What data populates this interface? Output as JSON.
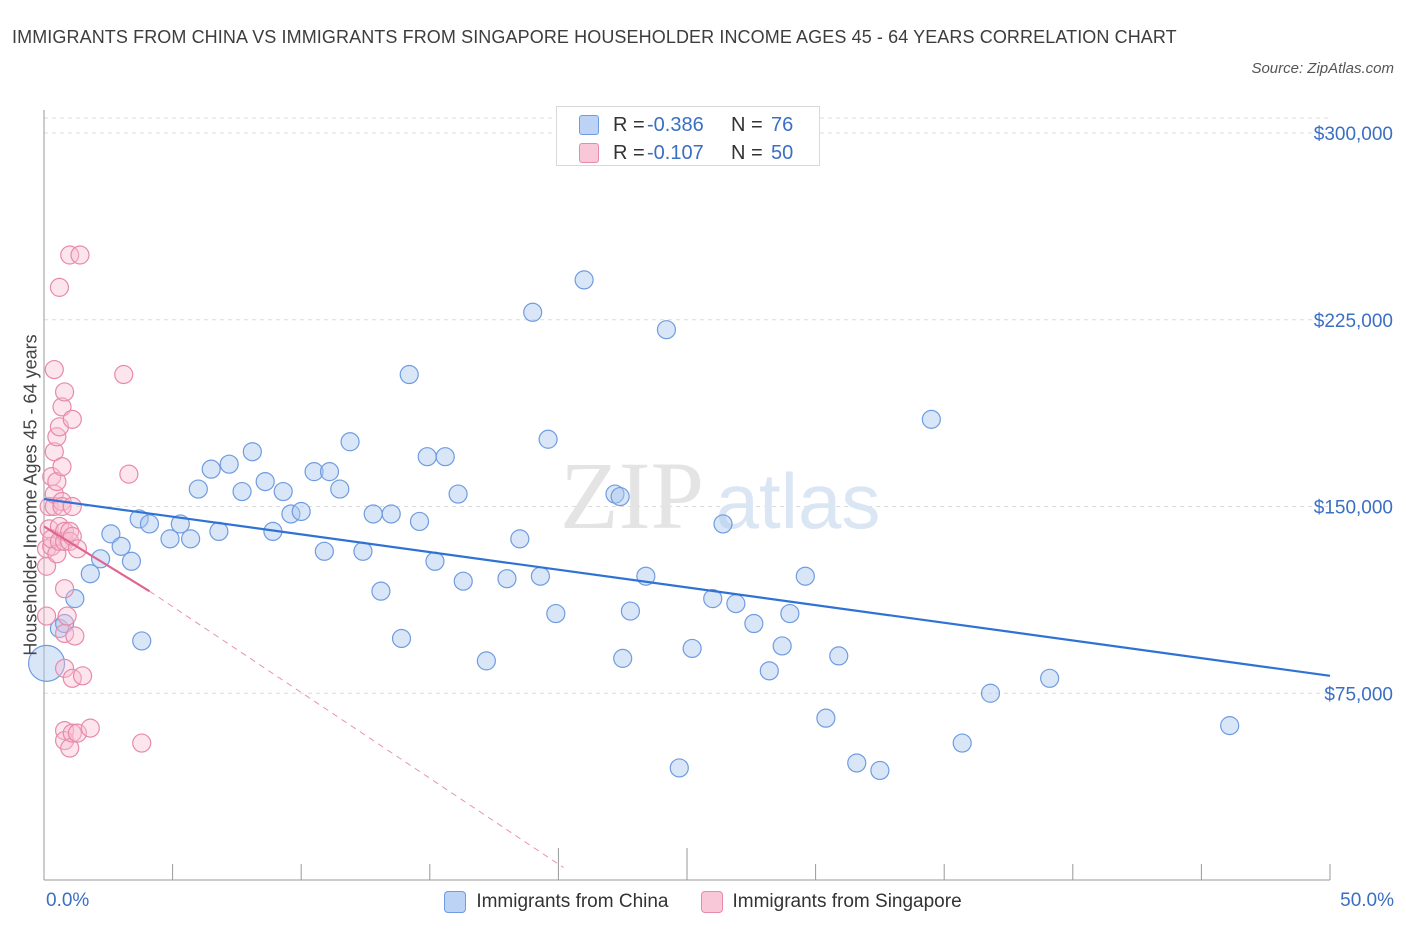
{
  "title": "IMMIGRANTS FROM CHINA VS IMMIGRANTS FROM SINGAPORE HOUSEHOLDER INCOME AGES 45 - 64 YEARS CORRELATION CHART",
  "source": "Source: ZipAtlas.com",
  "watermark": {
    "zip": "ZIP",
    "atlas": "atlas"
  },
  "legend_top": [
    {
      "r_label": "R =",
      "r_value": "-0.386",
      "n_label": "N =",
      "n_value": "76",
      "fill": "#bcd3f5",
      "stroke": "#6f9ce0"
    },
    {
      "r_label": "R =",
      "r_value": "-0.107",
      "n_label": "N =",
      "n_value": "50",
      "fill": "#f9c8d8",
      "stroke": "#e88aaa"
    }
  ],
  "legend_bottom": [
    {
      "label": "Immigrants from China",
      "fill": "#bcd3f5",
      "stroke": "#6f9ce0"
    },
    {
      "label": "Immigrants from Singapore",
      "fill": "#f9c8d8",
      "stroke": "#e88aaa"
    }
  ],
  "colors": {
    "china_fill": "rgba(170,200,240,0.45)",
    "china_stroke": "#6f9ce0",
    "china_line": "#2f72d4",
    "sg_fill": "rgba(248,190,210,0.40)",
    "sg_stroke": "#e88aaa",
    "sg_line": "#e0648f",
    "grid": "#dcdcdc",
    "axis_text": "#3a6fc4"
  },
  "chart_data": {
    "type": "scatter",
    "title": "IMMIGRANTS FROM CHINA VS IMMIGRANTS FROM SINGAPORE HOUSEHOLDER INCOME AGES 45 - 64 YEARS CORRELATION CHART",
    "xlabel": "",
    "ylabel": "Householder Income Ages 45 - 64 years",
    "xlim": [
      0,
      50
    ],
    "ylim": [
      0,
      300000
    ],
    "x_tick_labels": [
      "0.0%",
      "50.0%"
    ],
    "y_ticks": [
      75000,
      150000,
      225000,
      300000
    ],
    "y_tick_labels": [
      "$75,000",
      "$150,000",
      "$225,000",
      "$300,000"
    ],
    "grid": true,
    "legend_position": "top-center",
    "series": [
      {
        "name": "Immigrants from China",
        "r": -0.386,
        "n": 76,
        "trend": {
          "x": [
            0,
            50
          ],
          "y": [
            153000,
            82000
          ],
          "style": "solid"
        },
        "points": [
          [
            0.1,
            87000
          ],
          [
            0.6,
            101000
          ],
          [
            0.8,
            103000
          ],
          [
            1.2,
            113000
          ],
          [
            1.8,
            123000
          ],
          [
            2.2,
            129000
          ],
          [
            2.6,
            139000
          ],
          [
            3.0,
            134000
          ],
          [
            3.4,
            128000
          ],
          [
            3.8,
            96000
          ],
          [
            3.7,
            145000
          ],
          [
            4.1,
            143000
          ],
          [
            4.9,
            137000
          ],
          [
            5.3,
            143000
          ],
          [
            5.7,
            137000
          ],
          [
            6.0,
            157000
          ],
          [
            6.5,
            165000
          ],
          [
            6.8,
            140000
          ],
          [
            7.2,
            167000
          ],
          [
            7.7,
            156000
          ],
          [
            8.1,
            172000
          ],
          [
            8.6,
            160000
          ],
          [
            8.9,
            140000
          ],
          [
            9.3,
            156000
          ],
          [
            9.6,
            147000
          ],
          [
            10.0,
            148000
          ],
          [
            10.5,
            164000
          ],
          [
            10.9,
            132000
          ],
          [
            11.1,
            164000
          ],
          [
            11.5,
            157000
          ],
          [
            11.9,
            176000
          ],
          [
            12.4,
            132000
          ],
          [
            12.8,
            147000
          ],
          [
            13.1,
            116000
          ],
          [
            13.5,
            147000
          ],
          [
            13.9,
            97000
          ],
          [
            14.2,
            203000
          ],
          [
            14.6,
            144000
          ],
          [
            14.9,
            170000
          ],
          [
            15.2,
            128000
          ],
          [
            15.6,
            170000
          ],
          [
            16.1,
            155000
          ],
          [
            16.3,
            120000
          ],
          [
            17.2,
            88000
          ],
          [
            18.0,
            121000
          ],
          [
            18.5,
            137000
          ],
          [
            19.0,
            228000
          ],
          [
            19.3,
            122000
          ],
          [
            19.6,
            177000
          ],
          [
            19.9,
            107000
          ],
          [
            21.0,
            241000
          ],
          [
            22.2,
            155000
          ],
          [
            22.4,
            154000
          ],
          [
            22.5,
            89000
          ],
          [
            22.8,
            108000
          ],
          [
            23.4,
            122000
          ],
          [
            24.2,
            221000
          ],
          [
            24.7,
            45000
          ],
          [
            25.2,
            93000
          ],
          [
            26.0,
            113000
          ],
          [
            26.4,
            143000
          ],
          [
            26.9,
            111000
          ],
          [
            27.6,
            103000
          ],
          [
            28.2,
            84000
          ],
          [
            28.7,
            94000
          ],
          [
            29.0,
            107000
          ],
          [
            29.6,
            122000
          ],
          [
            30.4,
            65000
          ],
          [
            30.9,
            90000
          ],
          [
            31.6,
            47000
          ],
          [
            32.5,
            44000
          ],
          [
            34.5,
            185000
          ],
          [
            35.7,
            55000
          ],
          [
            36.8,
            75000
          ],
          [
            39.1,
            81000
          ],
          [
            46.1,
            62000
          ]
        ]
      },
      {
        "name": "Immigrants from Singapore",
        "r": -0.107,
        "n": 50,
        "trend": {
          "x": [
            0,
            4.1
          ],
          "y": [
            142000,
            116000
          ],
          "style": "solid",
          "extension": {
            "x": [
              4.1,
              20.2
            ],
            "y": [
              116000,
              5000
            ],
            "style": "dashed"
          }
        },
        "points": [
          [
            0.1,
            106000
          ],
          [
            0.1,
            126000
          ],
          [
            0.1,
            133000
          ],
          [
            0.2,
            141000
          ],
          [
            0.2,
            150000
          ],
          [
            0.3,
            134000
          ],
          [
            0.3,
            137000
          ],
          [
            0.3,
            162000
          ],
          [
            0.4,
            150000
          ],
          [
            0.4,
            155000
          ],
          [
            0.4,
            172000
          ],
          [
            0.4,
            205000
          ],
          [
            0.5,
            160000
          ],
          [
            0.5,
            178000
          ],
          [
            0.5,
            131000
          ],
          [
            0.6,
            142000
          ],
          [
            0.6,
            136000
          ],
          [
            0.6,
            238000
          ],
          [
            0.6,
            182000
          ],
          [
            0.7,
            190000
          ],
          [
            0.7,
            166000
          ],
          [
            0.7,
            152000
          ],
          [
            0.7,
            150000
          ],
          [
            0.8,
            136000
          ],
          [
            0.8,
            140000
          ],
          [
            0.8,
            196000
          ],
          [
            0.8,
            99000
          ],
          [
            0.8,
            117000
          ],
          [
            0.8,
            85000
          ],
          [
            0.8,
            60000
          ],
          [
            0.8,
            56000
          ],
          [
            0.9,
            106000
          ],
          [
            1.0,
            251000
          ],
          [
            1.0,
            140000
          ],
          [
            1.0,
            136000
          ],
          [
            1.0,
            53000
          ],
          [
            1.1,
            81000
          ],
          [
            1.1,
            59000
          ],
          [
            1.1,
            185000
          ],
          [
            1.1,
            150000
          ],
          [
            1.1,
            138000
          ],
          [
            1.2,
            98000
          ],
          [
            1.3,
            133000
          ],
          [
            1.3,
            59000
          ],
          [
            1.4,
            251000
          ],
          [
            1.5,
            82000
          ],
          [
            1.8,
            61000
          ],
          [
            3.1,
            203000
          ],
          [
            3.3,
            163000
          ],
          [
            3.8,
            55000
          ]
        ]
      }
    ]
  }
}
